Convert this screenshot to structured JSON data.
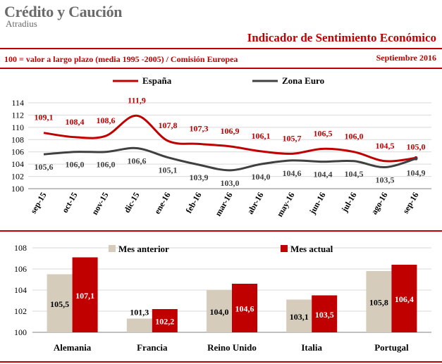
{
  "header": {
    "brand": "Crédito y Caución",
    "brand_sub": "Atradius",
    "title": "Indicador de Sentimiento Económico",
    "subtitle": "100 = valor a largo plazo (media 1995 -2005) / Comisión Europea",
    "date": "Septiembre 2016"
  },
  "colors": {
    "red": "#c00000",
    "gray_line": "#404040",
    "beige": "#d5ccbb",
    "grid": "#d9d9d9"
  },
  "chart_data": [
    {
      "type": "line",
      "x": [
        "sep-15",
        "oct-15",
        "nov-15",
        "dic-15",
        "ene-16",
        "feb-16",
        "mar-16",
        "abr-16",
        "may-16",
        "jun-16",
        "jul-16",
        "ago-16",
        "sep-16"
      ],
      "ylim": [
        100,
        114
      ],
      "yticks": [
        "100",
        "102",
        "104",
        "106",
        "108",
        "110",
        "112",
        "114"
      ],
      "legend_position": "top",
      "series": [
        {
          "name": "España",
          "color": "#c00000",
          "values": [
            109.1,
            108.4,
            108.6,
            111.9,
            107.8,
            107.3,
            106.9,
            106.1,
            105.7,
            106.5,
            106.0,
            104.5,
            105.0
          ],
          "labels": [
            "109,1",
            "108,4",
            "108,6",
            "111,9",
            "107,8",
            "107,3",
            "106,9",
            "106,1",
            "105,7",
            "106,5",
            "106,0",
            "104,5",
            "105,0"
          ]
        },
        {
          "name": "Zona Euro",
          "color": "#404040",
          "values": [
            105.6,
            106.0,
            106.0,
            106.6,
            105.1,
            103.9,
            103.0,
            104.0,
            104.6,
            104.4,
            104.5,
            103.5,
            104.9
          ],
          "labels": [
            "105,6",
            "106,0",
            "106,0",
            "106,6",
            "105,1",
            "103,9",
            "103,0",
            "104,0",
            "104,6",
            "104,4",
            "104,5",
            "103,5",
            "104,9"
          ]
        }
      ]
    },
    {
      "type": "bar",
      "categories": [
        "Alemania",
        "Francia",
        "Reino Unido",
        "Italia",
        "Portugal"
      ],
      "ylim": [
        100,
        108
      ],
      "yticks": [
        "100",
        "102",
        "104",
        "106",
        "108"
      ],
      "legend_position": "top",
      "series": [
        {
          "name": "Mes anterior",
          "color": "#d5ccbb",
          "values": [
            105.5,
            101.3,
            104.0,
            103.1,
            105.8
          ],
          "labels": [
            "105,5",
            "101,3",
            "104,0",
            "103,1",
            "105,8"
          ]
        },
        {
          "name": "Mes actual",
          "color": "#c00000",
          "values": [
            107.1,
            102.2,
            104.6,
            103.5,
            106.4
          ],
          "labels": [
            "107,1",
            "102,2",
            "104,6",
            "103,5",
            "106,4"
          ]
        }
      ]
    }
  ]
}
